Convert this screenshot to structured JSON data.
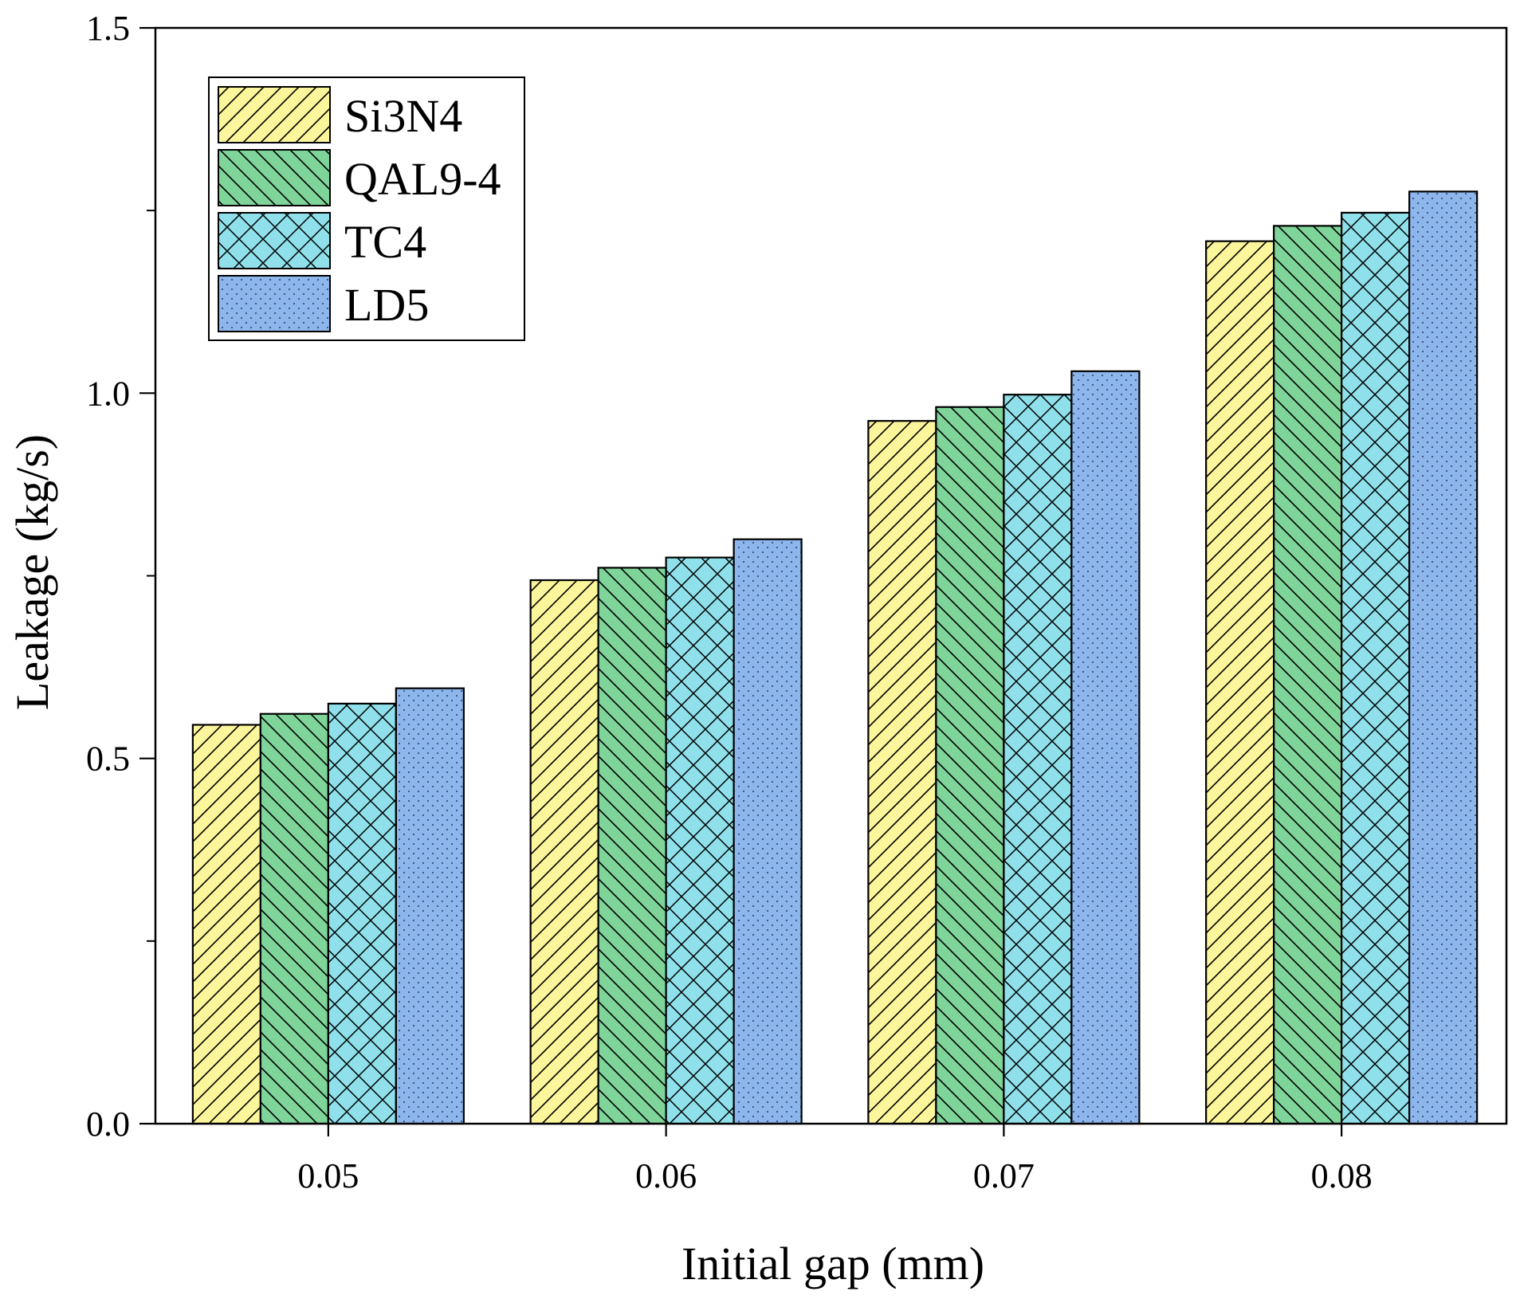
{
  "chart_data": {
    "type": "bar",
    "title": "",
    "xlabel": "Initial gap (mm)",
    "ylabel": "Leakage (kg/s)",
    "categories": [
      "0.05",
      "0.06",
      "0.07",
      "0.08"
    ],
    "ylim": [
      0,
      1.5
    ],
    "yticks_major": [
      "0.0",
      "0.5",
      "1.0",
      "1.5"
    ],
    "ytick_values": [
      0,
      0.5,
      1.0,
      1.5
    ],
    "yminor_values": [
      0.25,
      0.75,
      1.25
    ],
    "grid": false,
    "legend_position": "top-left",
    "series": [
      {
        "name": "Si3N4",
        "values": [
          0.546,
          0.744,
          0.962,
          1.208
        ],
        "color": "#fbf59b",
        "pattern": "diag-right"
      },
      {
        "name": "QAL9-4",
        "values": [
          0.561,
          0.761,
          0.981,
          1.229
        ],
        "color": "#7fd49a",
        "pattern": "diag-left"
      },
      {
        "name": "TC4",
        "values": [
          0.575,
          0.775,
          0.998,
          1.247
        ],
        "color": "#8fe0ea",
        "pattern": "cross"
      },
      {
        "name": "LD5",
        "values": [
          0.596,
          0.8,
          1.03,
          1.276
        ],
        "color": "#8db6ec",
        "pattern": "dots"
      }
    ]
  }
}
